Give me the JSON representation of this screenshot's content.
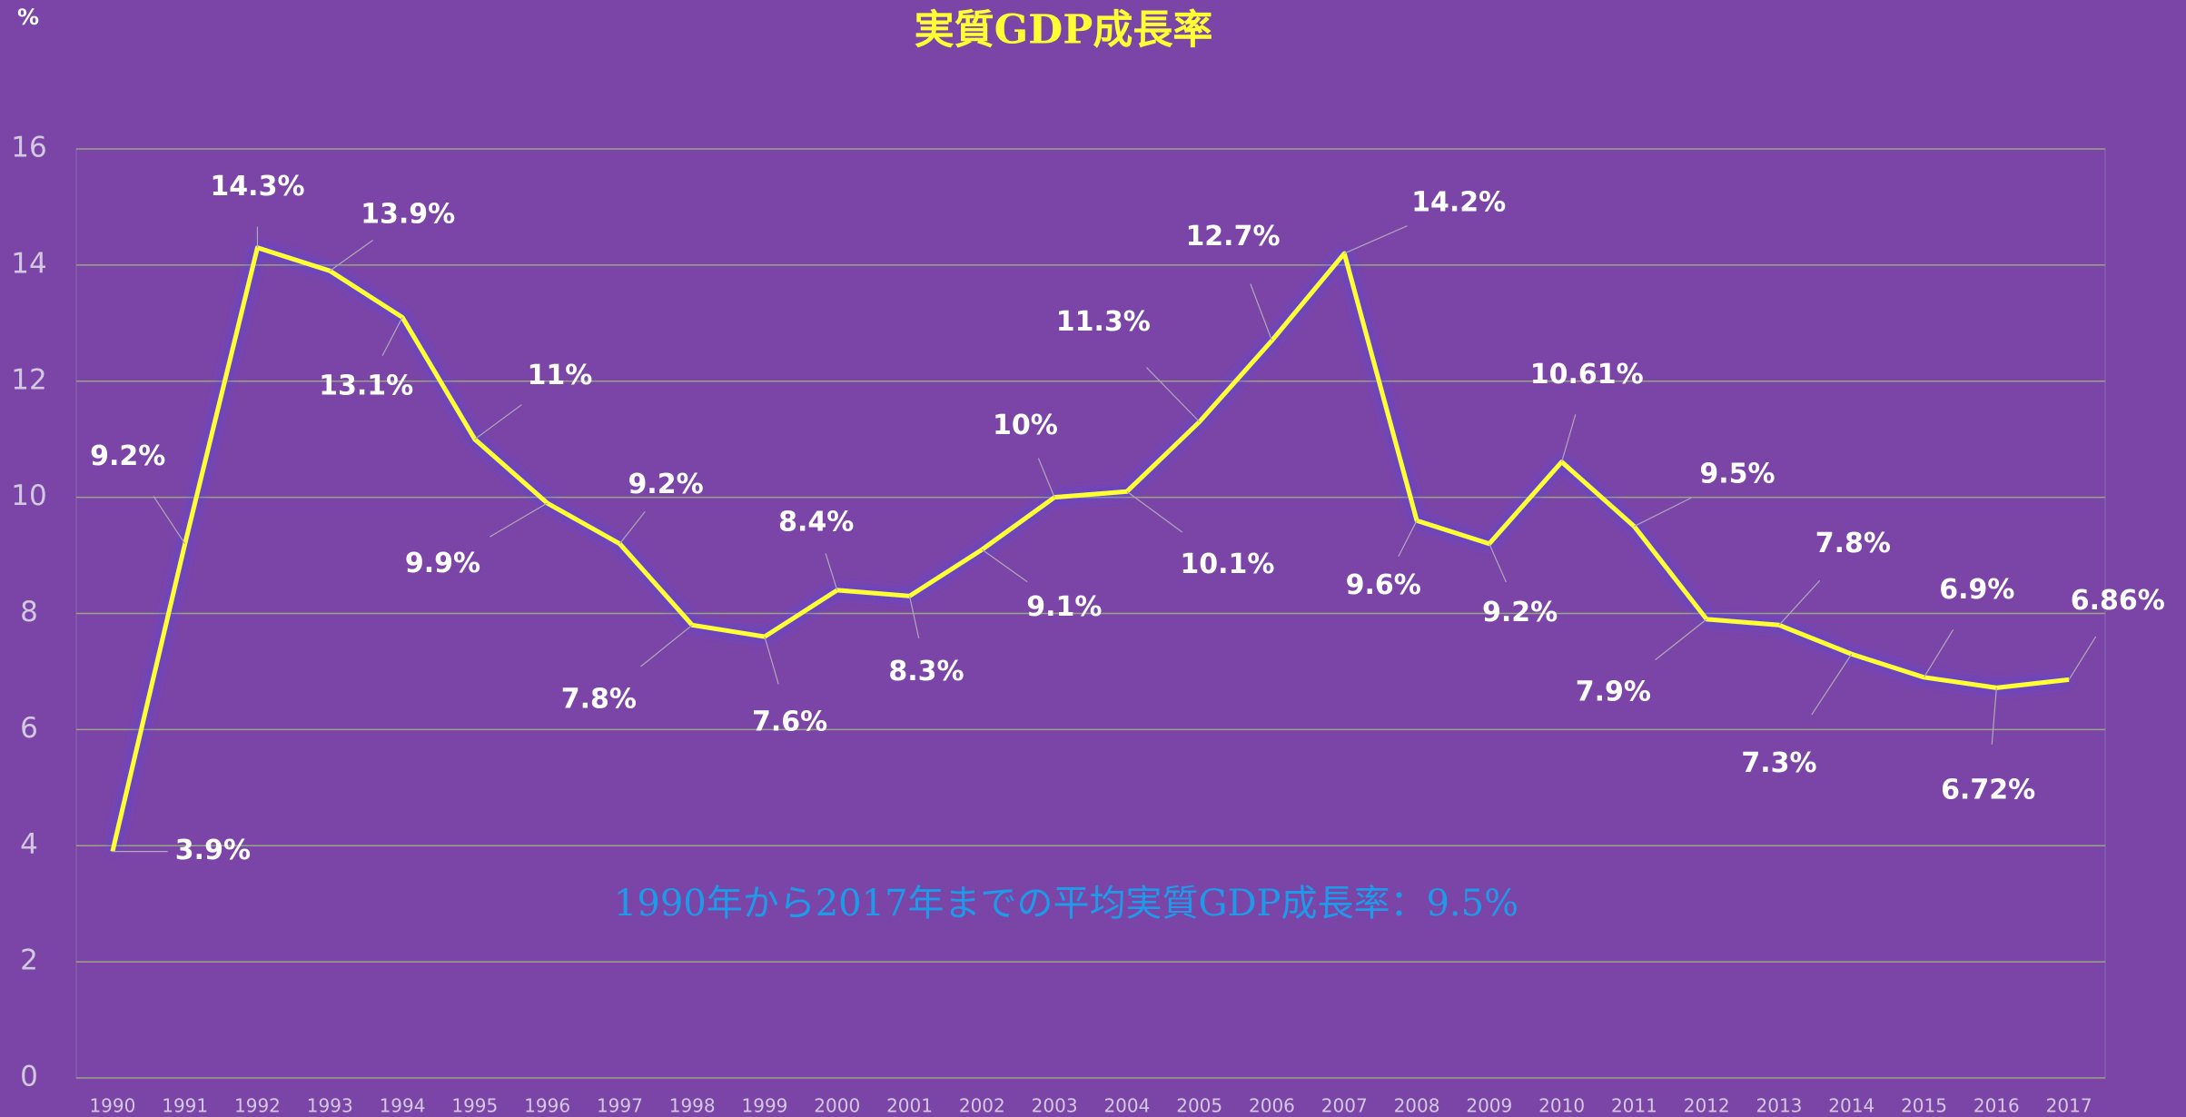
{
  "chart_data": {
    "type": "line",
    "title": "実質GDP成長率",
    "y_axis_label": "%",
    "annotation": "1990年から2017年までの平均実質GDP成長率：9.5%",
    "categories": [
      "1990",
      "1991",
      "1992",
      "1993",
      "1994",
      "1995",
      "1996",
      "1997",
      "1998",
      "1999",
      "2000",
      "2001",
      "2002",
      "2003",
      "2004",
      "2005",
      "2006",
      "2007",
      "2008",
      "2009",
      "2010",
      "2011",
      "2012",
      "2013",
      "2014",
      "2015",
      "2016",
      "2017"
    ],
    "series": [
      {
        "name": "実質GDP成長率",
        "color": "#ffff33",
        "values": [
          3.9,
          9.2,
          14.3,
          13.9,
          13.1,
          11,
          9.9,
          9.2,
          7.8,
          7.6,
          8.4,
          8.3,
          9.1,
          10,
          10.1,
          11.3,
          12.7,
          14.2,
          9.6,
          9.2,
          10.61,
          9.5,
          7.9,
          7.8,
          7.3,
          6.9,
          6.72,
          6.86
        ],
        "value_labels": [
          "3.9%",
          "9.2%",
          "14.3%",
          "13.9%",
          "13.1%",
          "11%",
          "9.9%",
          "9.2%",
          "7.8%",
          "7.6%",
          "8.4%",
          "8.3%",
          "9.1%",
          "10%",
          "10.1%",
          "11.3%",
          "12.7%",
          "14.2%",
          "9.6%",
          "9.2%",
          "10.61%",
          "9.5%",
          "7.9%",
          "7.8%",
          "7.3%",
          "6.9%",
          "6.72%",
          "6.86%"
        ]
      }
    ],
    "ylim": [
      0,
      16
    ],
    "yticks": [
      0,
      2,
      4,
      6,
      8,
      10,
      12,
      14,
      16
    ],
    "grid": true
  }
}
